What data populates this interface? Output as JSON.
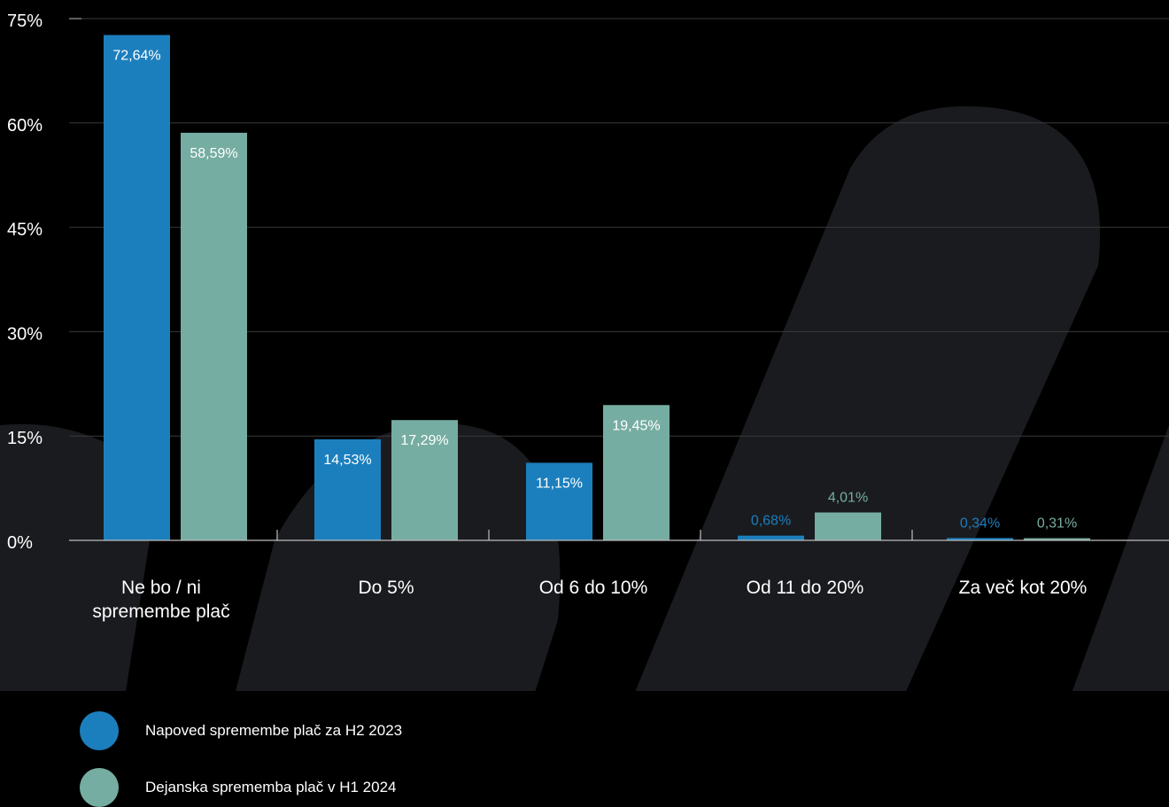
{
  "colors": {
    "background": "#000000",
    "decor": "#1a1b1f",
    "grid": "#3a3a3a",
    "axis": "#bdbdbd",
    "series_1": "#1c7fbd",
    "series_2": "#76ada2",
    "text": "#ffffff"
  },
  "chart_data": {
    "type": "bar",
    "title": "",
    "xlabel": "",
    "ylabel": "",
    "ylim": [
      0,
      75
    ],
    "yticks": [
      0,
      15,
      30,
      45,
      60,
      75
    ],
    "ytick_labels": [
      "0%",
      "15%",
      "30%",
      "45%",
      "60%",
      "75%"
    ],
    "grid": true,
    "legend_position": "bottom-left",
    "categories": [
      [
        "Ne bo / ni",
        "spremembe plač"
      ],
      [
        "Do 5%"
      ],
      [
        "Od 6 do 10%"
      ],
      [
        "Od 11 do 20%"
      ],
      [
        "Za več kot 20%"
      ]
    ],
    "series": [
      {
        "name": "Napoved spremembe plač za H2 2023",
        "color": "#1c7fbd",
        "values": [
          72.64,
          14.53,
          11.15,
          0.68,
          0.34
        ],
        "labels": [
          "72,64%",
          "14,53%",
          "11,15%",
          "0,68%",
          "0,34%"
        ]
      },
      {
        "name": "Dejanska sprememba plač v H1 2024",
        "color": "#76ada2",
        "values": [
          58.59,
          17.29,
          19.45,
          4.01,
          0.31
        ],
        "labels": [
          "58,59%",
          "17,29%",
          "19,45%",
          "4,01%",
          "0,31%"
        ]
      }
    ]
  }
}
